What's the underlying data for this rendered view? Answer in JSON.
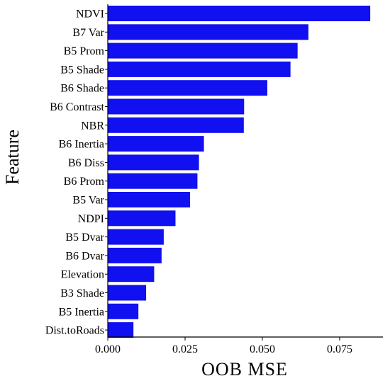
{
  "chart_data": {
    "type": "bar",
    "orientation": "horizontal",
    "xlabel": "OOB  MSE",
    "ylabel": "Feature",
    "xlim": [
      0,
      0.089
    ],
    "xticks": [
      "0.000",
      "0.025",
      "0.050",
      "0.075"
    ],
    "xtick_values": [
      0,
      0.025,
      0.05,
      0.075
    ],
    "grid": false,
    "bar_color": "#1010F0",
    "categories": [
      "NDVI",
      "B7 Var",
      "B5 Prom",
      "B5 Shade",
      "B6 Shade",
      "B6 Contrast",
      "NBR",
      "B6 Inertia",
      "B6 Diss",
      "B6 Prom",
      "B5 Var",
      "NDPI",
      "B5 Dvar",
      "B6 Dvar",
      "Elevation",
      "B3 Shade",
      "B5 Inertia",
      "Dist.toRoads"
    ],
    "values": [
      0.0849,
      0.0649,
      0.0614,
      0.0591,
      0.0516,
      0.0441,
      0.044,
      0.0311,
      0.0295,
      0.029,
      0.0266,
      0.0219,
      0.0181,
      0.0174,
      0.015,
      0.0124,
      0.0099,
      0.0083
    ]
  }
}
